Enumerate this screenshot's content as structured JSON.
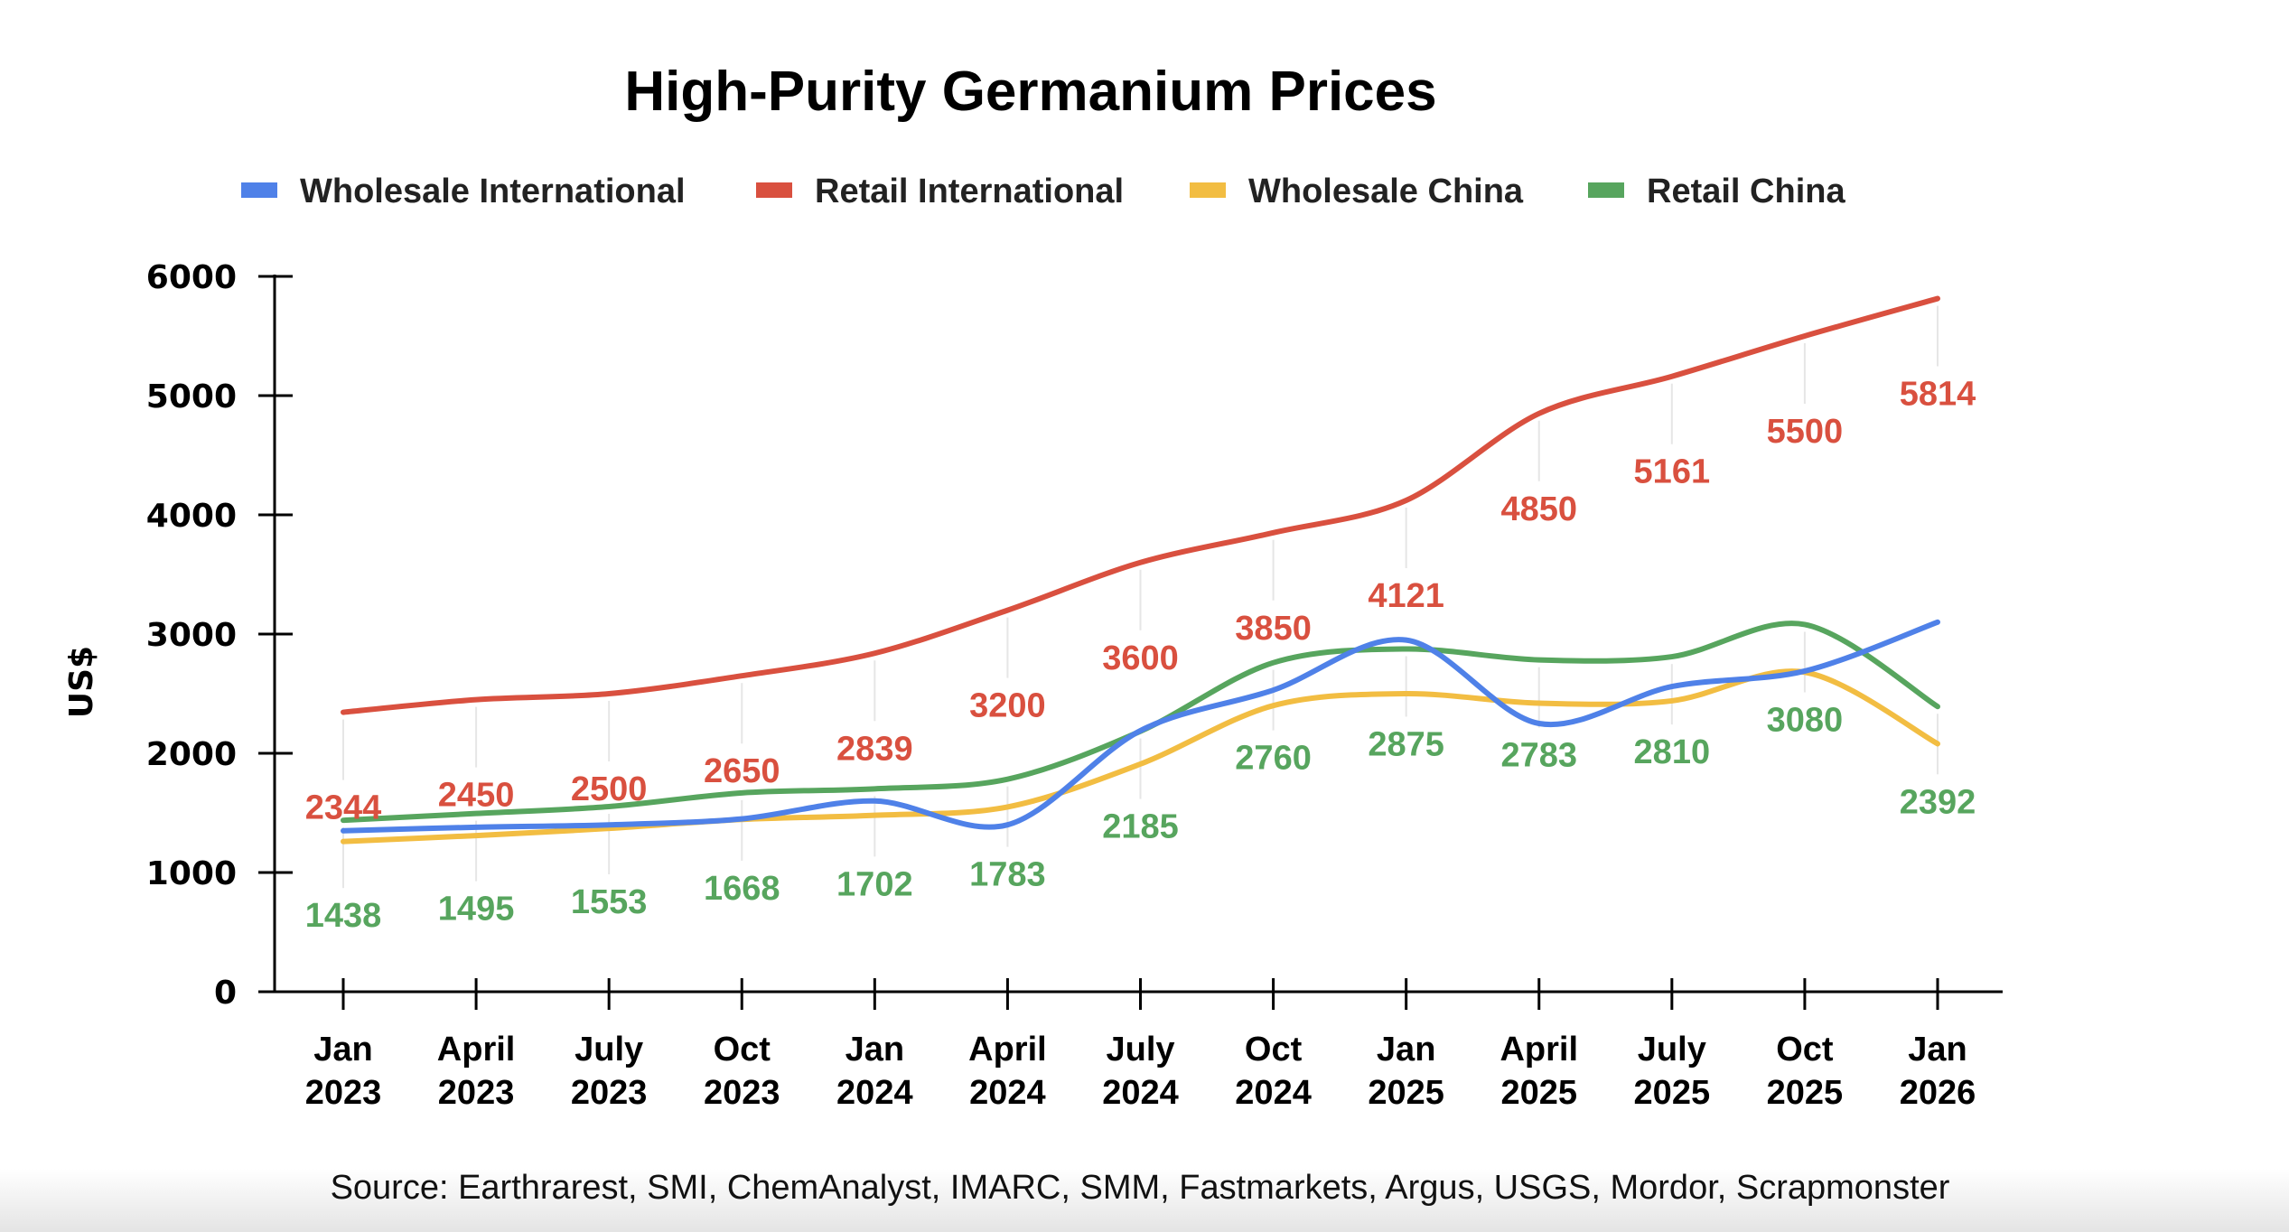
{
  "chart_data": {
    "type": "line",
    "title": "High-Purity Germanium Prices",
    "xlabel": "",
    "ylabel": "US$",
    "ylim": [
      0,
      6000
    ],
    "yticks": [
      "0",
      "1000",
      "2000",
      "3000",
      "4000",
      "5000",
      "6000"
    ],
    "ytick_values": [
      0,
      1000,
      2000,
      3000,
      4000,
      5000,
      6000
    ],
    "grid": false,
    "smooth": true,
    "legend_position": "top",
    "categories": [
      [
        "Jan",
        "2023"
      ],
      [
        "April",
        "2023"
      ],
      [
        "July",
        "2023"
      ],
      [
        "Oct",
        "2023"
      ],
      [
        "Jan",
        "2024"
      ],
      [
        "April",
        "2024"
      ],
      [
        "July",
        "2024"
      ],
      [
        "Oct",
        "2024"
      ],
      [
        "Jan",
        "2025"
      ],
      [
        "April",
        "2025"
      ],
      [
        "July",
        "2025"
      ],
      [
        "Oct",
        "2025"
      ],
      [
        "Jan",
        "2026"
      ]
    ],
    "series": [
      {
        "name": "Wholesale International",
        "color": "#4f81e8",
        "values": [
          1350,
          1380,
          1400,
          1450,
          1600,
          1400,
          2190,
          2530,
          2950,
          2250,
          2560,
          2690,
          3100
        ],
        "labeled": false
      },
      {
        "name": "Retail International",
        "color": "#d9503f",
        "values": [
          2344,
          2450,
          2500,
          2650,
          2839,
          3200,
          3600,
          3850,
          4121,
          4850,
          5161,
          5500,
          5814
        ],
        "labeled": true
      },
      {
        "name": "Wholesale China",
        "color": "#f2bd42",
        "values": [
          1260,
          1310,
          1370,
          1445,
          1480,
          1550,
          1910,
          2400,
          2500,
          2420,
          2440,
          2680,
          2080
        ],
        "labeled": false
      },
      {
        "name": "Retail China",
        "color": "#57a55e",
        "values": [
          1438,
          1495,
          1553,
          1668,
          1702,
          1783,
          2185,
          2760,
          2875,
          2783,
          2810,
          3080,
          2392
        ],
        "labeled": true
      }
    ],
    "annotations": [
      "Source: Earthrarest, SMI, ChemAnalyst, IMARC, SMM, Fastmarkets, Argus, USGS, Mordor, Scrapmonster"
    ]
  },
  "source": "Source: Earthrarest, SMI, ChemAnalyst, IMARC, SMM, Fastmarkets, Argus, USGS, Mordor, Scrapmonster"
}
